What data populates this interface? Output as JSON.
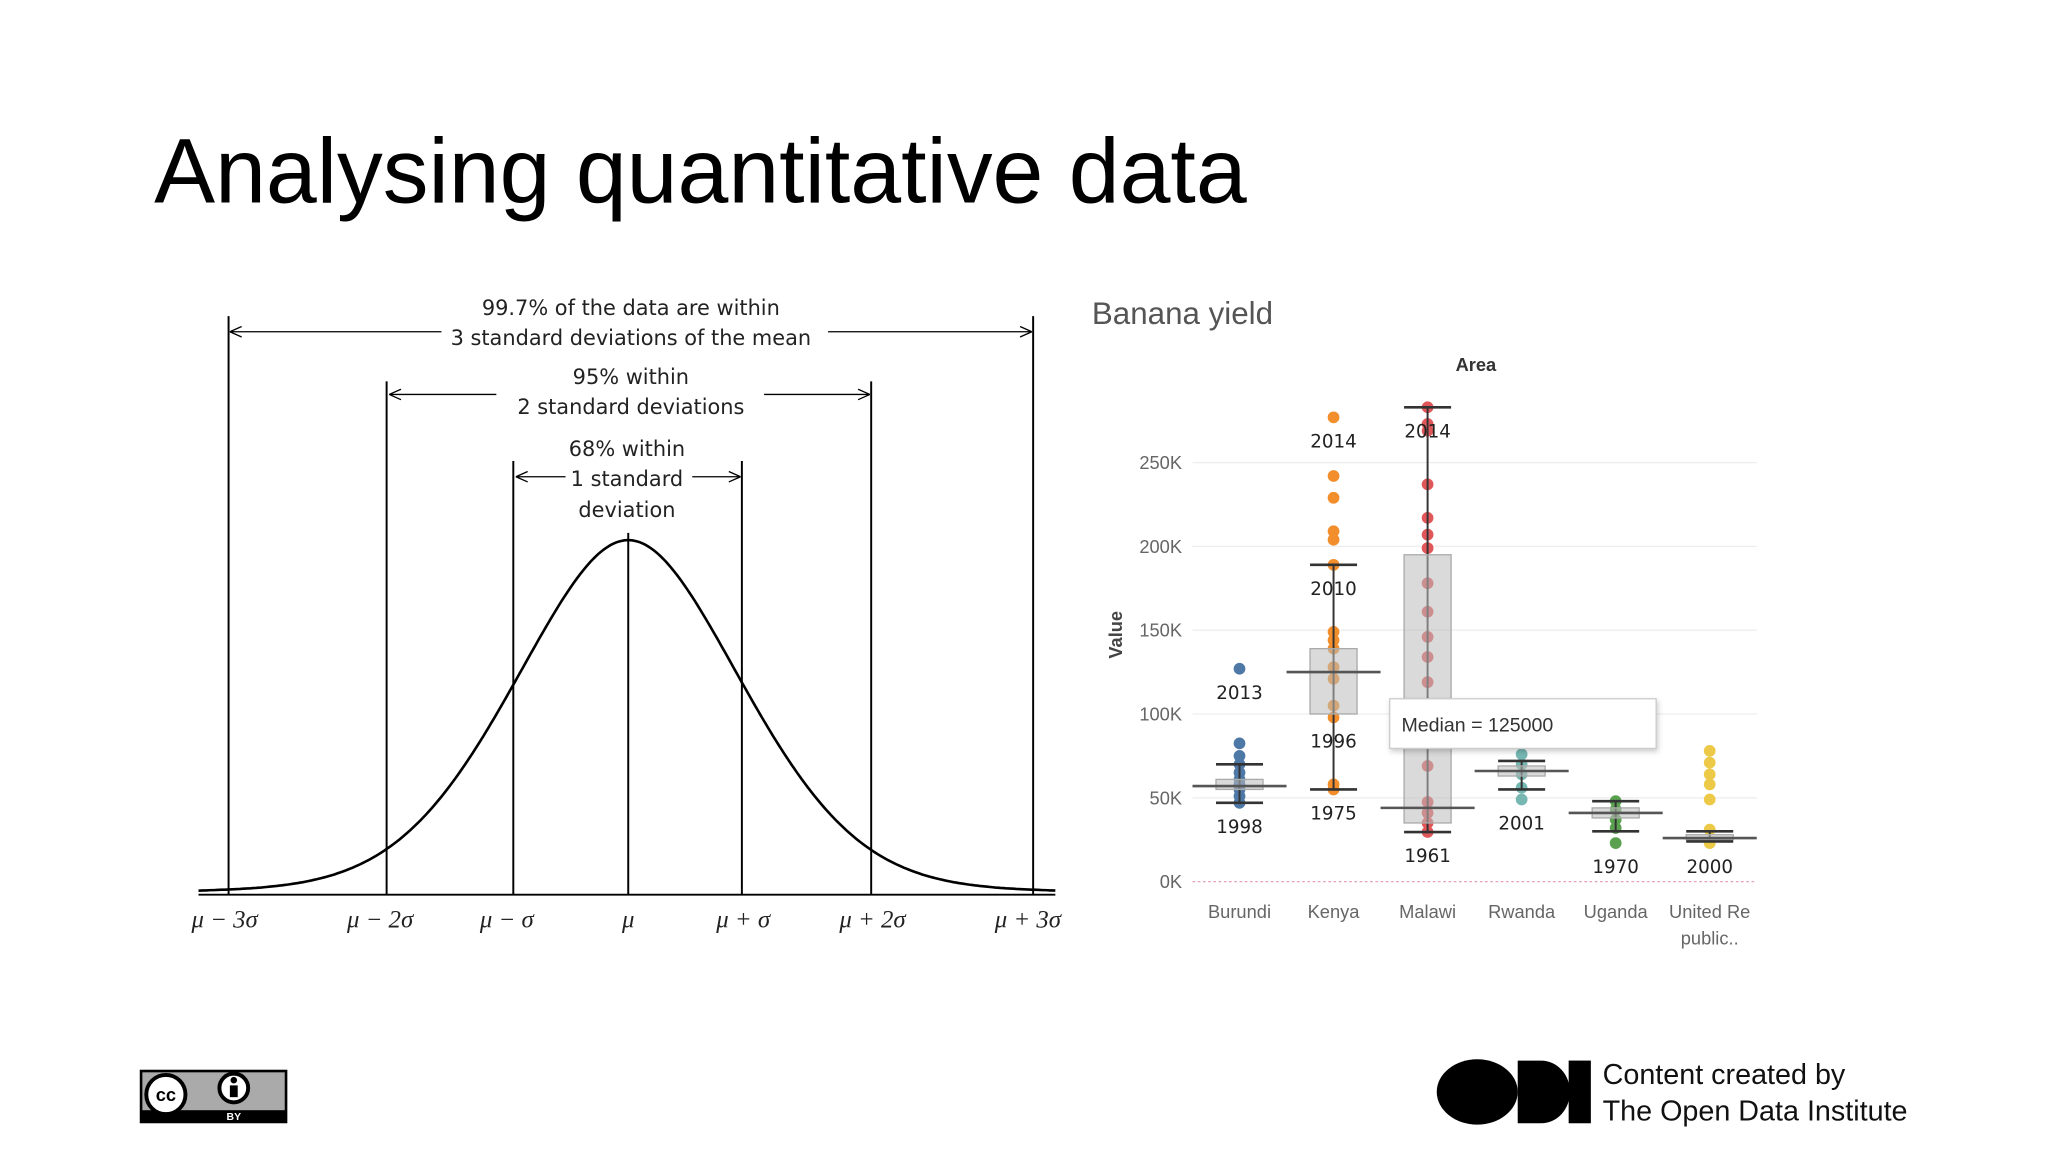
{
  "title": "Analysing quantitative data",
  "normal_diagram": {
    "annotations": [
      "99.7% of the data are within",
      "3 standard deviations of the mean",
      "95% within",
      "2 standard deviations",
      "68% within",
      "1 standard",
      "deviation"
    ],
    "x_labels": [
      "μ − 3σ",
      "μ − 2σ",
      "μ − σ",
      "μ",
      "μ + σ",
      "μ + 2σ",
      "μ + 3σ"
    ]
  },
  "chart_data": {
    "type": "box",
    "title": "Banana yield",
    "header": "Area",
    "y_label": "Value",
    "categories": [
      "Burundi",
      "Kenya",
      "Malawi",
      "Rwanda",
      "Uganda",
      "United Republic.."
    ],
    "ylim": [
      0,
      300000
    ],
    "yticks": [
      {
        "value": 0,
        "label": "0K"
      },
      {
        "value": 50000,
        "label": "50K"
      },
      {
        "value": 100000,
        "label": "100K"
      },
      {
        "value": 150000,
        "label": "150K"
      },
      {
        "value": 200000,
        "label": "200K"
      },
      {
        "value": 250000,
        "label": "250K"
      }
    ],
    "grid": true,
    "boxes": [
      {
        "color": "#4e79a7",
        "min": 47000,
        "q1": 55000,
        "median": 57000,
        "q3": 61000,
        "max": 70000,
        "points": [
          127000,
          82500,
          75000,
          70000,
          65000,
          61000,
          58000,
          55000,
          51000,
          47000
        ],
        "point_labels": [
          "2013",
          null,
          null,
          null,
          null,
          null,
          null,
          null,
          null,
          "1998"
        ]
      },
      {
        "color": "#f28e2b",
        "min": 55000,
        "q1": 100000,
        "median": 125000,
        "q3": 139000,
        "max": 189000,
        "points": [
          277000,
          242000,
          229000,
          209000,
          204000,
          189000,
          149000,
          144000,
          139000,
          128000,
          121000,
          105000,
          98000,
          58000,
          55000
        ],
        "point_labels": [
          "2014",
          null,
          null,
          null,
          null,
          "2010",
          null,
          null,
          null,
          null,
          null,
          null,
          "1996",
          null,
          "1975"
        ]
      },
      {
        "color": "#e15759",
        "min": 29600,
        "q1": 35000,
        "median": 44000,
        "q3": 195000,
        "max": 283000,
        "points": [
          283000,
          273000,
          269000,
          237000,
          217000,
          207000,
          199000,
          178000,
          161000,
          146000,
          134000,
          119000,
          69000,
          47500,
          41000,
          35000,
          29600
        ],
        "point_labels": [
          "2014",
          null,
          null,
          null,
          null,
          null,
          null,
          null,
          null,
          null,
          null,
          null,
          null,
          null,
          null,
          null,
          "1961"
        ]
      },
      {
        "color": "#76b7b2",
        "min": 55000,
        "q1": 63000,
        "median": 66000,
        "q3": 69000,
        "max": 72000,
        "points": [
          76000,
          70000,
          64000,
          56000,
          49000
        ],
        "point_labels": [
          null,
          null,
          null,
          null,
          "2001"
        ]
      },
      {
        "color": "#59a14f",
        "min": 30000,
        "q1": 38000,
        "median": 41000,
        "q3": 44000,
        "max": 48000,
        "points": [
          48000,
          43000,
          37000,
          32000,
          23000
        ],
        "point_labels": [
          null,
          null,
          null,
          null,
          "1970"
        ]
      },
      {
        "color": "#edc948",
        "min": 24000,
        "q1": 25000,
        "median": 26000,
        "q3": 28000,
        "max": 30000,
        "points": [
          78000,
          71000,
          64000,
          58000,
          49000,
          31000,
          23000
        ],
        "point_labels": [
          null,
          null,
          null,
          null,
          null,
          null,
          "2000"
        ]
      }
    ],
    "tooltip": "Median = 125000"
  },
  "footer": {
    "credit": [
      "Content created by",
      "The Open Data Institute"
    ],
    "license_badge": [
      "cc",
      "BY"
    ]
  }
}
